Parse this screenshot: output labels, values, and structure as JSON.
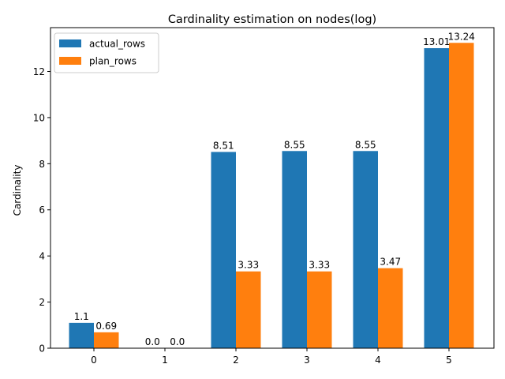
{
  "chart_data": {
    "type": "bar",
    "title": "Cardinality estimation on nodes(log)",
    "xlabel": "",
    "ylabel": "Cardinality",
    "categories": [
      "0",
      "1",
      "2",
      "3",
      "4",
      "5"
    ],
    "ylim": [
      0,
      13.9
    ],
    "yticks": [
      "0",
      "2",
      "4",
      "6",
      "8",
      "10",
      "12"
    ],
    "grid": false,
    "legend_position": "top-left",
    "series": [
      {
        "name": "actual_rows",
        "color": "#1f77b4",
        "values": [
          1.1,
          0.0,
          8.51,
          8.55,
          8.55,
          13.01
        ],
        "labels": [
          "1.1",
          "0.0",
          "8.51",
          "8.55",
          "8.55",
          "13.01"
        ]
      },
      {
        "name": "plan_rows",
        "color": "#ff7f0e",
        "values": [
          0.69,
          0.0,
          3.33,
          3.33,
          3.47,
          13.24
        ],
        "labels": [
          "0.69",
          "0.0",
          "3.33",
          "3.33",
          "3.47",
          "13.24"
        ]
      }
    ]
  }
}
